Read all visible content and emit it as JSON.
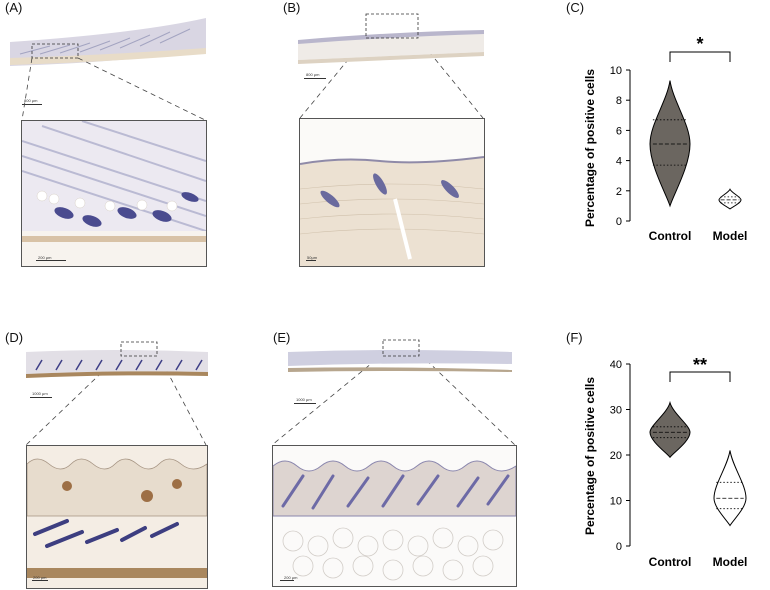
{
  "panels": {
    "a": "(A)",
    "b": "(B)",
    "c": "(C)",
    "d": "(D)",
    "e": "(E)",
    "f": "(F)"
  },
  "scale_bars": {
    "a_overview": "800 μm",
    "a_zoom": "200 μm",
    "b_overview": "800 μm",
    "b_zoom": "50μm",
    "d_overview": "1000 μm",
    "d_zoom": "200 μm",
    "e_overview": "1000 μm",
    "e_zoom": "200 μm"
  },
  "colors": {
    "control_fill": "#6b6660",
    "model_fill": "#ffffff",
    "stroke": "#000000"
  },
  "chart_data": [
    {
      "type": "violin",
      "panel": "(C)",
      "categories": [
        "Control",
        "Model"
      ],
      "ylabel": "Percentage of positive cells",
      "ylim": [
        0,
        10
      ],
      "yticks": [
        0,
        2,
        4,
        6,
        8,
        10
      ],
      "significance": "*",
      "series": [
        {
          "category": "Control",
          "min": 1.0,
          "max": 9.3,
          "q1": 3.7,
          "median": 5.1,
          "q3": 6.7
        },
        {
          "category": "Model",
          "min": 0.8,
          "max": 2.1,
          "q1": 1.2,
          "median": 1.4,
          "q3": 1.6
        }
      ]
    },
    {
      "type": "violin",
      "panel": "(F)",
      "categories": [
        "Control",
        "Model"
      ],
      "ylabel": "Percentage of positive cells",
      "ylim": [
        0,
        40
      ],
      "yticks": [
        0,
        10,
        20,
        30,
        40
      ],
      "significance": "**",
      "series": [
        {
          "category": "Control",
          "min": 19.5,
          "max": 31.5,
          "q1": 23.8,
          "median": 25.0,
          "q3": 26.2
        },
        {
          "category": "Model",
          "min": 4.5,
          "max": 21.0,
          "q1": 8.2,
          "median": 10.5,
          "q3": 14.0
        }
      ]
    }
  ]
}
